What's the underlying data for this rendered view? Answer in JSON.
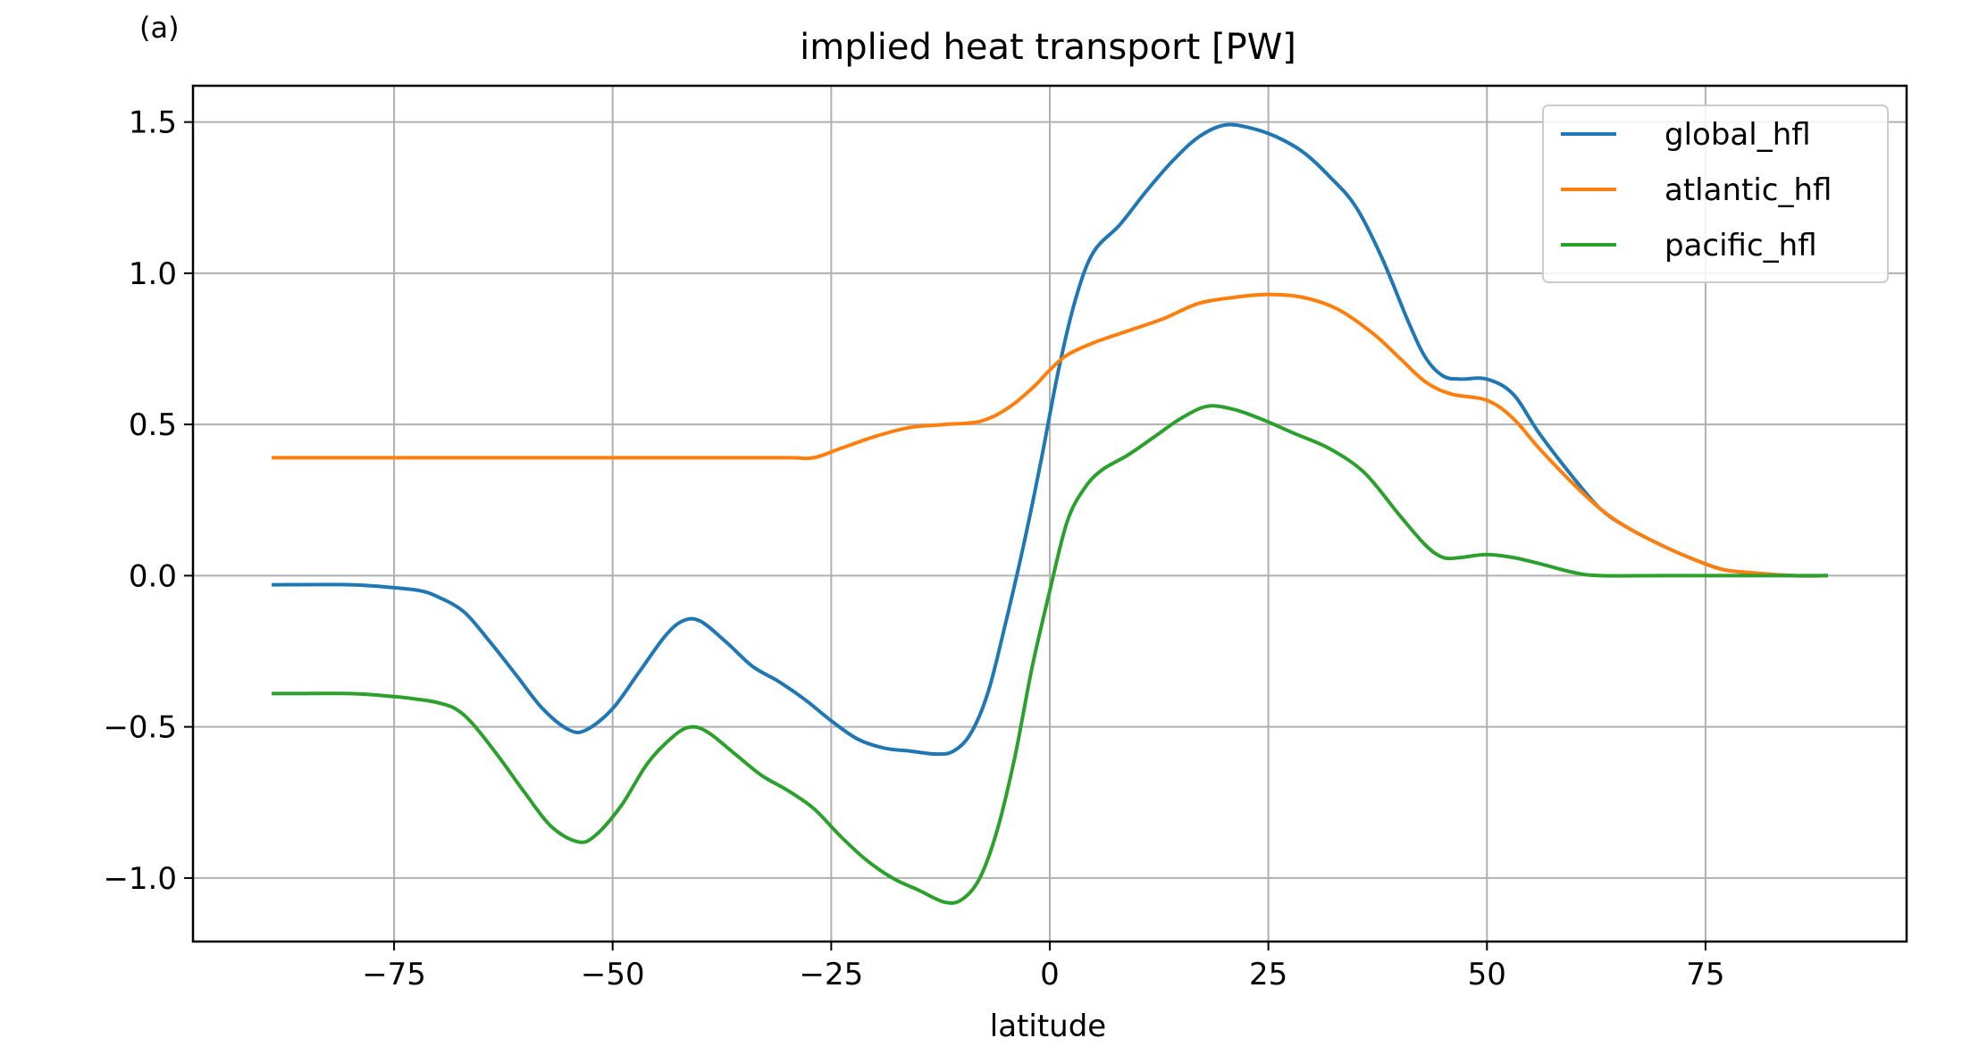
{
  "panel_label": "(a)",
  "chart_data": {
    "type": "line",
    "title": "implied heat transport [PW]",
    "xlabel": "latitude",
    "ylabel": "",
    "xlim": [
      -98,
      98
    ],
    "ylim": [
      -1.21,
      1.62
    ],
    "xticks": [
      -75,
      -50,
      -25,
      0,
      25,
      50,
      75
    ],
    "xtick_labels": [
      "−75",
      "−50",
      "−25",
      "0",
      "25",
      "50",
      "75"
    ],
    "yticks": [
      -1.0,
      -0.5,
      0.0,
      0.5,
      1.0,
      1.5
    ],
    "ytick_labels": [
      "−1.0",
      "−0.5",
      "0.0",
      "0.5",
      "1.0",
      "1.5"
    ],
    "grid": true,
    "legend_position": "upper right",
    "series": [
      {
        "name": "global_hfl",
        "color": "#1f77b4",
        "points": [
          [
            -89,
            -0.03
          ],
          [
            -80,
            -0.03
          ],
          [
            -75,
            -0.04
          ],
          [
            -72,
            -0.05
          ],
          [
            -70,
            -0.07
          ],
          [
            -67,
            -0.12
          ],
          [
            -64,
            -0.22
          ],
          [
            -61,
            -0.33
          ],
          [
            -58,
            -0.44
          ],
          [
            -55,
            -0.51
          ],
          [
            -53,
            -0.51
          ],
          [
            -50,
            -0.44
          ],
          [
            -47,
            -0.32
          ],
          [
            -44,
            -0.2
          ],
          [
            -42,
            -0.15
          ],
          [
            -40,
            -0.15
          ],
          [
            -37,
            -0.22
          ],
          [
            -34,
            -0.3
          ],
          [
            -31,
            -0.35
          ],
          [
            -28,
            -0.41
          ],
          [
            -25,
            -0.48
          ],
          [
            -22,
            -0.54
          ],
          [
            -19,
            -0.57
          ],
          [
            -16,
            -0.58
          ],
          [
            -13,
            -0.59
          ],
          [
            -11,
            -0.58
          ],
          [
            -9,
            -0.52
          ],
          [
            -7,
            -0.38
          ],
          [
            -5,
            -0.15
          ],
          [
            -3,
            0.1
          ],
          [
            -1,
            0.38
          ],
          [
            1,
            0.68
          ],
          [
            3,
            0.92
          ],
          [
            5,
            1.07
          ],
          [
            8,
            1.16
          ],
          [
            11,
            1.27
          ],
          [
            14,
            1.37
          ],
          [
            17,
            1.45
          ],
          [
            20,
            1.49
          ],
          [
            23,
            1.48
          ],
          [
            26,
            1.45
          ],
          [
            29,
            1.4
          ],
          [
            32,
            1.32
          ],
          [
            35,
            1.22
          ],
          [
            38,
            1.05
          ],
          [
            41,
            0.84
          ],
          [
            43,
            0.72
          ],
          [
            45,
            0.66
          ],
          [
            47,
            0.65
          ],
          [
            50,
            0.65
          ],
          [
            53,
            0.6
          ],
          [
            56,
            0.47
          ],
          [
            60,
            0.32
          ],
          [
            63,
            0.22
          ],
          [
            66,
            0.16
          ],
          [
            70,
            0.1
          ],
          [
            74,
            0.05
          ],
          [
            77,
            0.02
          ],
          [
            80,
            0.01
          ],
          [
            85,
            0.0
          ],
          [
            89,
            0.0
          ]
        ]
      },
      {
        "name": "atlantic_hfl",
        "color": "#ff7f0e",
        "points": [
          [
            -89,
            0.39
          ],
          [
            -80,
            0.39
          ],
          [
            -70,
            0.39
          ],
          [
            -60,
            0.39
          ],
          [
            -50,
            0.39
          ],
          [
            -40,
            0.39
          ],
          [
            -30,
            0.39
          ],
          [
            -27,
            0.39
          ],
          [
            -24,
            0.42
          ],
          [
            -20,
            0.46
          ],
          [
            -16,
            0.49
          ],
          [
            -12,
            0.5
          ],
          [
            -8,
            0.51
          ],
          [
            -5,
            0.55
          ],
          [
            -2,
            0.62
          ],
          [
            0,
            0.68
          ],
          [
            2,
            0.73
          ],
          [
            5,
            0.77
          ],
          [
            9,
            0.81
          ],
          [
            13,
            0.85
          ],
          [
            17,
            0.9
          ],
          [
            21,
            0.92
          ],
          [
            25,
            0.93
          ],
          [
            29,
            0.92
          ],
          [
            33,
            0.88
          ],
          [
            37,
            0.8
          ],
          [
            40,
            0.72
          ],
          [
            43,
            0.64
          ],
          [
            46,
            0.6
          ],
          [
            50,
            0.58
          ],
          [
            53,
            0.52
          ],
          [
            56,
            0.42
          ],
          [
            60,
            0.3
          ],
          [
            63,
            0.22
          ],
          [
            66,
            0.16
          ],
          [
            70,
            0.1
          ],
          [
            74,
            0.05
          ],
          [
            77,
            0.02
          ],
          [
            80,
            0.01
          ],
          [
            85,
            0.0
          ],
          [
            89,
            0.0
          ]
        ]
      },
      {
        "name": "pacific_hfl",
        "color": "#2ca02c",
        "points": [
          [
            -89,
            -0.39
          ],
          [
            -80,
            -0.39
          ],
          [
            -75,
            -0.4
          ],
          [
            -72,
            -0.41
          ],
          [
            -70,
            -0.42
          ],
          [
            -68,
            -0.44
          ],
          [
            -66,
            -0.49
          ],
          [
            -63,
            -0.6
          ],
          [
            -60,
            -0.72
          ],
          [
            -57,
            -0.83
          ],
          [
            -54,
            -0.88
          ],
          [
            -52,
            -0.86
          ],
          [
            -49,
            -0.76
          ],
          [
            -46,
            -0.62
          ],
          [
            -43,
            -0.53
          ],
          [
            -41,
            -0.5
          ],
          [
            -39,
            -0.52
          ],
          [
            -36,
            -0.59
          ],
          [
            -33,
            -0.66
          ],
          [
            -30,
            -0.71
          ],
          [
            -27,
            -0.77
          ],
          [
            -24,
            -0.86
          ],
          [
            -21,
            -0.94
          ],
          [
            -18,
            -1.0
          ],
          [
            -15,
            -1.04
          ],
          [
            -12,
            -1.08
          ],
          [
            -10,
            -1.07
          ],
          [
            -8,
            -1.0
          ],
          [
            -6,
            -0.84
          ],
          [
            -4,
            -0.6
          ],
          [
            -2,
            -0.3
          ],
          [
            0,
            -0.05
          ],
          [
            2,
            0.18
          ],
          [
            4,
            0.29
          ],
          [
            6,
            0.35
          ],
          [
            9,
            0.4
          ],
          [
            12,
            0.46
          ],
          [
            15,
            0.52
          ],
          [
            18,
            0.56
          ],
          [
            21,
            0.55
          ],
          [
            24,
            0.52
          ],
          [
            28,
            0.47
          ],
          [
            32,
            0.42
          ],
          [
            36,
            0.34
          ],
          [
            40,
            0.2
          ],
          [
            43,
            0.1
          ],
          [
            45,
            0.06
          ],
          [
            47,
            0.06
          ],
          [
            50,
            0.07
          ],
          [
            53,
            0.06
          ],
          [
            56,
            0.04
          ],
          [
            60,
            0.01
          ],
          [
            63,
            0.0
          ],
          [
            70,
            0.0
          ],
          [
            80,
            0.0
          ],
          [
            89,
            0.0
          ]
        ]
      }
    ]
  }
}
